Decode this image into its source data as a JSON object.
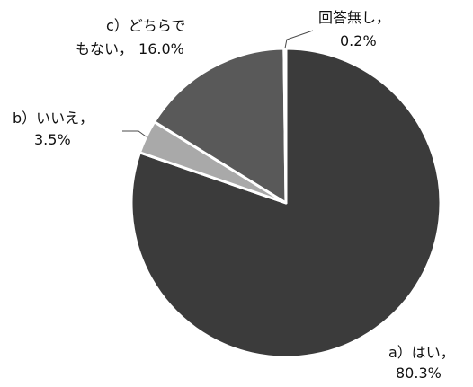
{
  "chart_data": {
    "type": "pie",
    "slices": [
      {
        "label": "a）はい，",
        "percent_text": "80.3%",
        "value": 80.3,
        "color": "#3b3b3b"
      },
      {
        "label": "b）いいえ，",
        "percent_text": "3.5%",
        "value": 3.5,
        "color": "#a9a9a9"
      },
      {
        "label": "c）どちらでもない，",
        "label_line1": "c）どちらで",
        "label_line2": "もない，",
        "percent_text": "16.0%",
        "value": 16.0,
        "color": "#595959"
      },
      {
        "label": "回答無し，",
        "percent_text": "0.2%",
        "value": 0.2,
        "color": "#f2f2f2"
      }
    ],
    "slice_border_color": "#ffffff",
    "legend": "none",
    "leader_lines": true
  }
}
